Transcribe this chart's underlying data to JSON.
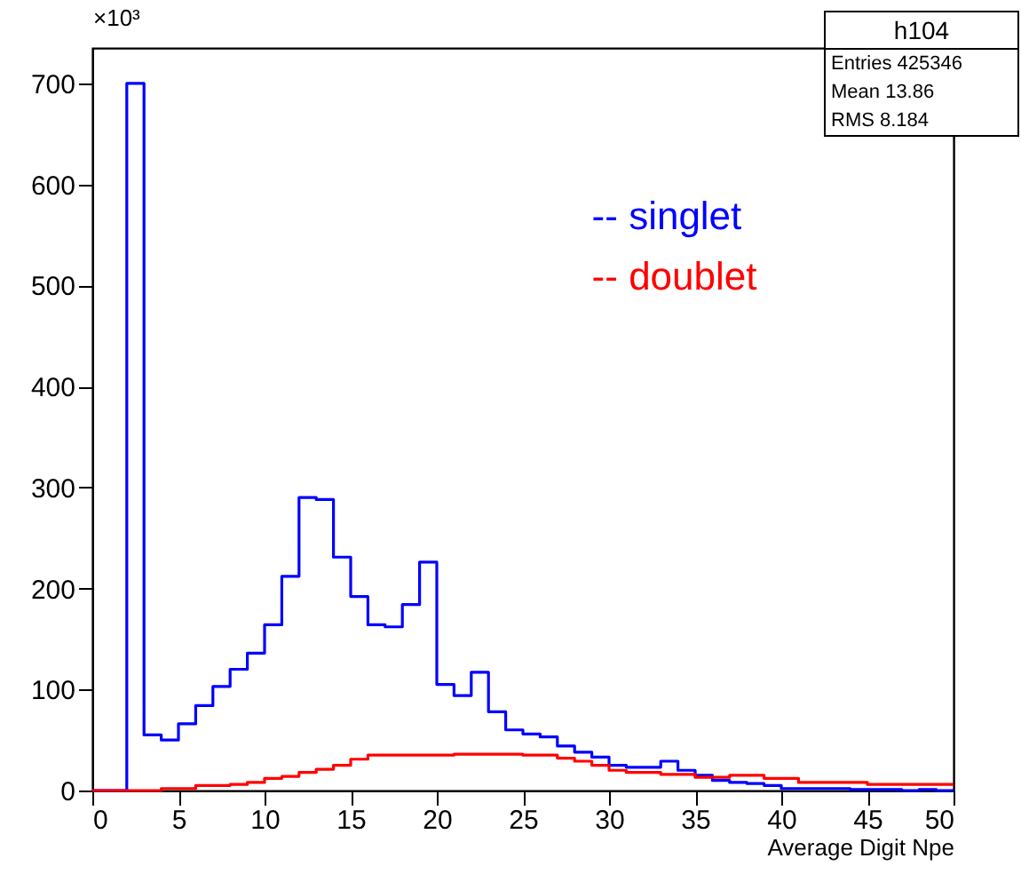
{
  "chart_data": {
    "type": "histogram",
    "xlabel": "Average Digit Npe",
    "ylabel": "×10³",
    "bins": [
      0,
      1,
      2,
      3,
      4,
      5,
      6,
      7,
      8,
      9,
      10,
      11,
      12,
      13,
      14,
      15,
      16,
      17,
      18,
      19,
      20,
      21,
      22,
      23,
      24,
      25,
      26,
      27,
      28,
      29,
      30,
      31,
      32,
      33,
      34,
      35,
      36,
      37,
      38,
      39,
      40,
      41,
      42,
      43,
      44,
      45,
      46,
      47,
      48,
      49,
      50
    ],
    "series": [
      {
        "name": "-- singlet",
        "color": "#0000ff",
        "values": [
          0,
          0,
          700,
          55,
          50,
          66,
          84,
          103,
          120,
          136,
          164,
          212,
          290,
          288,
          231,
          192,
          164,
          162,
          184,
          226,
          105,
          94,
          117,
          78,
          60,
          56,
          53,
          44,
          38,
          33,
          25,
          23,
          23,
          29,
          20,
          15,
          10,
          8,
          7,
          5,
          2,
          2,
          2,
          2,
          1,
          1,
          1,
          0,
          1,
          0
        ]
      },
      {
        "name": "-- doublet",
        "color": "#ff0000",
        "values": [
          0,
          0,
          0,
          0,
          2,
          2,
          5,
          5,
          6,
          8,
          12,
          14,
          18,
          21,
          25,
          31,
          35,
          35,
          35,
          35,
          35,
          36,
          36,
          36,
          36,
          35,
          35,
          32,
          29,
          25,
          20,
          18,
          18,
          16,
          16,
          13,
          13,
          15,
          15,
          12,
          12,
          8,
          8,
          8,
          8,
          6,
          6,
          6,
          6,
          6
        ]
      }
    ],
    "xlim": [
      0,
      50
    ],
    "xticks": [
      0,
      5,
      10,
      15,
      20,
      25,
      30,
      35,
      40,
      45,
      50
    ],
    "ylim": [
      0,
      735
    ],
    "yticks": [
      0,
      100,
      200,
      300,
      400,
      500,
      600,
      700
    ],
    "grid": false,
    "legend": "top right",
    "annotations": [
      "h104",
      "Entries 425346",
      "Mean 13.86",
      "RMS 8.184"
    ]
  }
}
